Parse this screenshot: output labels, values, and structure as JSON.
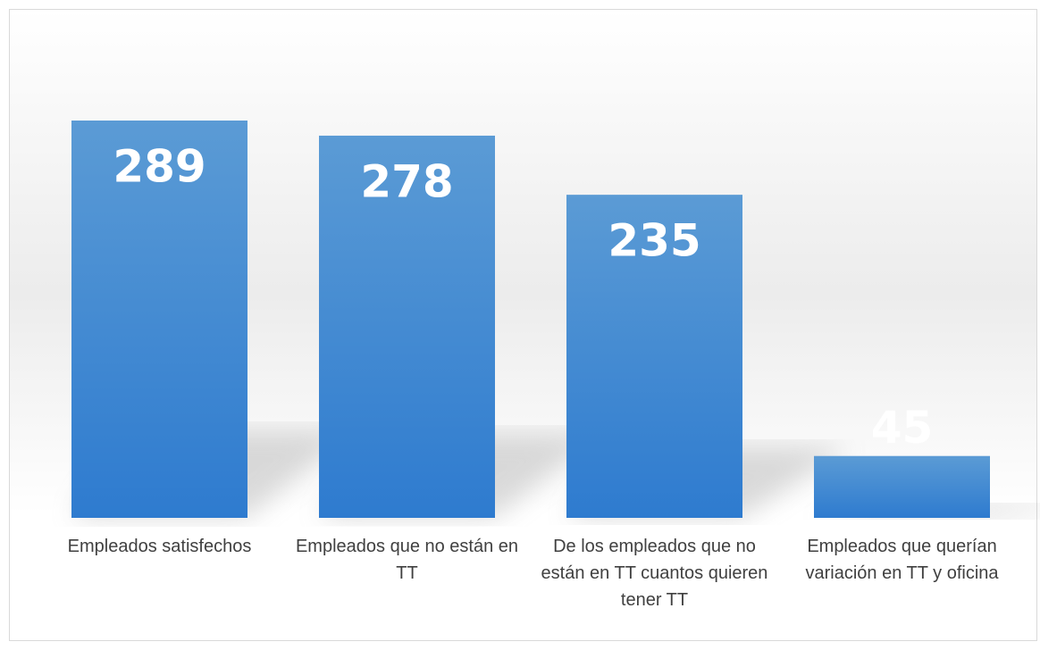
{
  "chart_data": {
    "type": "bar",
    "categories": [
      "Empleados satisfechos",
      "Empleados que no están en TT",
      "De los empleados que no están en TT cuantos quieren tener TT",
      "Empleados que querían variación en TT y oficina"
    ],
    "values": [
      289,
      278,
      235,
      45
    ],
    "color": "#3f86d2"
  }
}
